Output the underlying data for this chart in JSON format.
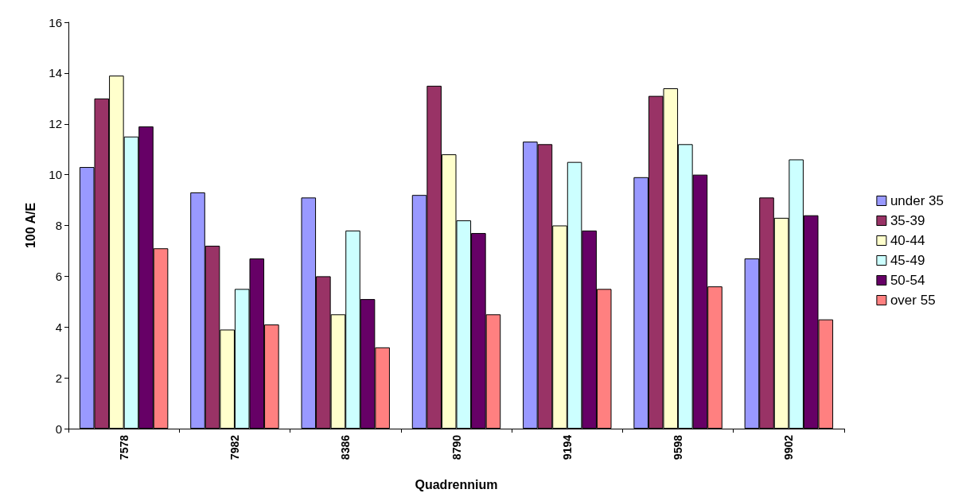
{
  "chart_data": {
    "type": "bar",
    "xlabel": "Quadrennium",
    "ylabel": "100 A/E",
    "categories": [
      "7578",
      "7982",
      "8386",
      "8790",
      "9194",
      "9598",
      "9902"
    ],
    "series": [
      {
        "name": "under 35",
        "color": "#9999ff",
        "values": [
          10.3,
          9.3,
          9.1,
          9.2,
          11.3,
          9.9,
          6.7
        ]
      },
      {
        "name": "35-39",
        "color": "#993366",
        "values": [
          13.0,
          7.2,
          6.0,
          13.5,
          11.2,
          13.1,
          9.1
        ]
      },
      {
        "name": "40-44",
        "color": "#ffffcc",
        "values": [
          13.9,
          3.9,
          4.5,
          10.8,
          8.0,
          13.4,
          8.3
        ]
      },
      {
        "name": "45-49",
        "color": "#ccffff",
        "values": [
          11.5,
          5.5,
          7.8,
          8.2,
          10.5,
          11.2,
          10.6
        ]
      },
      {
        "name": "50-54",
        "color": "#660066",
        "values": [
          11.9,
          6.7,
          5.1,
          7.7,
          7.8,
          10.0,
          8.4
        ]
      },
      {
        "name": "over 55",
        "color": "#ff8080",
        "values": [
          7.1,
          4.1,
          3.2,
          4.5,
          5.5,
          5.6,
          4.3
        ]
      }
    ],
    "ylim": [
      0,
      16
    ],
    "yticks": [
      0,
      2,
      4,
      6,
      8,
      10,
      12,
      14,
      16
    ],
    "grid": false,
    "legend": "right"
  }
}
